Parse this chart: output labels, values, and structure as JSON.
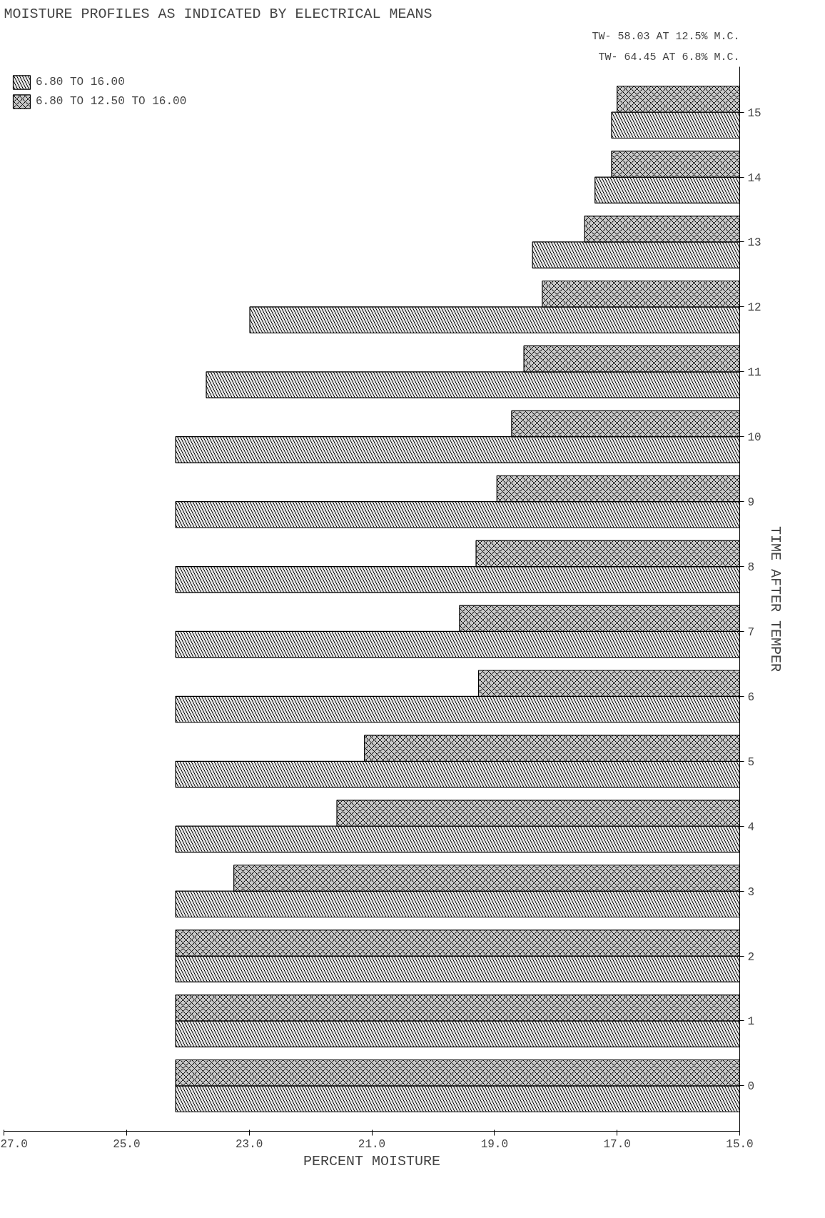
{
  "chart_data": {
    "type": "bar",
    "orientation": "horizontal",
    "title": "MOISTURE PROFILES AS INDICATED BY ELECTRICAL MEANS",
    "xlabel": "PERCENT MOISTURE",
    "ylabel": "TIME AFTER TEMPER",
    "categories": [
      "15",
      "14",
      "13",
      "12",
      "11",
      "10",
      "9",
      "8",
      "7",
      "6",
      "5",
      "4",
      "3",
      "2",
      "1",
      "0"
    ],
    "series": [
      {
        "name": "6.80 TO 16.00",
        "color": "#e6e6e6",
        "values": [
          17.09,
          17.36,
          18.38,
          22.99,
          23.7,
          24.2,
          24.2,
          24.2,
          24.2,
          24.2,
          24.2,
          24.2,
          24.2,
          24.2,
          24.2,
          24.2
        ]
      },
      {
        "name": "6.80 TO 12.50 TO 16.00",
        "color": "#c8c8c8",
        "values": [
          17.0,
          17.09,
          17.53,
          18.22,
          18.52,
          18.72,
          18.96,
          19.3,
          19.57,
          19.26,
          21.12,
          21.57,
          23.25,
          24.2,
          24.2,
          24.2
        ]
      }
    ],
    "xlim": [
      27,
      15
    ],
    "xticks": [
      {
        "value": 27,
        "label": "27.0"
      },
      {
        "value": 25,
        "label": "25.0"
      },
      {
        "value": 23,
        "label": "23.0"
      },
      {
        "value": 21,
        "label": "21.0"
      },
      {
        "value": 19,
        "label": "19.0"
      },
      {
        "value": 17,
        "label": "17.0"
      },
      {
        "value": 15,
        "label": "15.0"
      }
    ],
    "annotations": [
      "TW- 64.45 AT 6.8% M.C.",
      "TW- 58.03 AT 12.5% M.C."
    ],
    "legend": "top left",
    "grid": false
  }
}
